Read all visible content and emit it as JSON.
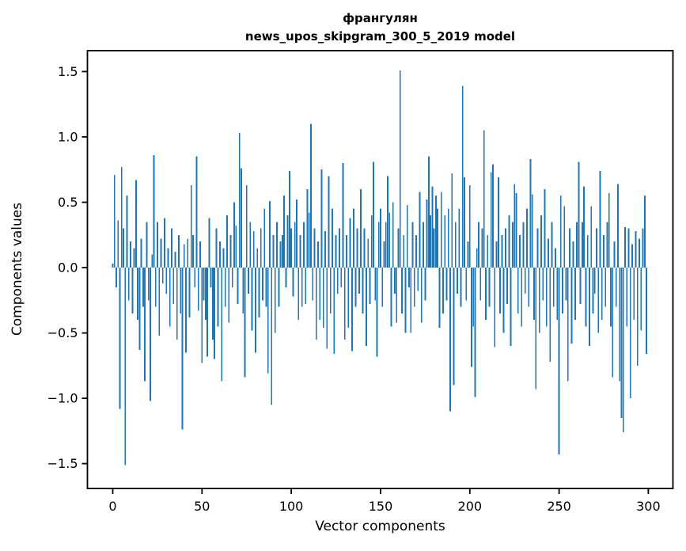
{
  "chart_data": {
    "type": "bar",
    "title": "франгулян",
    "subtitle": "news_upos_skipgram_300_5_2019 model",
    "xlabel": "Vector components",
    "ylabel": "Components values",
    "x_ticks": [
      0,
      50,
      100,
      150,
      200,
      250,
      300
    ],
    "y_ticks": [
      1.5,
      1.0,
      0.5,
      0.0,
      -0.5,
      -1.0,
      -1.5
    ],
    "xlim": [
      -14.2,
      313.8
    ],
    "ylim": [
      -1.69,
      1.66
    ],
    "grid": false,
    "legend": false,
    "bar_color": "#1f77b4",
    "axis_color": "#000000",
    "background": "#ffffff",
    "n_bars": 300,
    "bar_width": 0.8,
    "values": [
      0.03,
      0.71,
      -0.15,
      0.36,
      -1.08,
      0.77,
      0.3,
      -1.51,
      0.55,
      -0.25,
      0.2,
      -0.35,
      0.15,
      0.67,
      -0.4,
      -0.63,
      0.22,
      -0.3,
      -0.87,
      0.35,
      -0.25,
      -1.02,
      0.1,
      0.86,
      -0.3,
      0.35,
      -0.52,
      0.22,
      -0.12,
      0.38,
      -0.2,
      0.15,
      -0.45,
      0.3,
      -0.28,
      0.12,
      -0.55,
      0.25,
      -0.35,
      -1.24,
      0.18,
      -0.65,
      0.22,
      -0.38,
      0.63,
      0.25,
      -0.15,
      0.85,
      -0.33,
      0.2,
      -0.73,
      -0.25,
      -0.4,
      -0.68,
      0.38,
      -0.15,
      -0.55,
      -0.7,
      0.3,
      -0.45,
      0.2,
      -0.87,
      0.15,
      -0.3,
      0.4,
      -0.42,
      0.25,
      -0.15,
      0.5,
      0.32,
      -0.28,
      1.03,
      0.76,
      -0.35,
      -0.84,
      0.63,
      -0.2,
      0.35,
      -0.48,
      0.28,
      -0.65,
      0.15,
      -0.38,
      0.3,
      -0.25,
      0.45,
      -0.3,
      -0.81,
      0.51,
      -1.05,
      0.25,
      -0.5,
      0.35,
      -0.3,
      0.2,
      0.25,
      0.55,
      -0.15,
      0.4,
      0.74,
      0.3,
      -0.22,
      0.35,
      0.52,
      -0.4,
      0.25,
      -0.3,
      0.35,
      -0.28,
      0.6,
      0.42,
      1.1,
      -0.25,
      0.3,
      -0.55,
      0.2,
      -0.4,
      0.75,
      -0.46,
      0.28,
      -0.62,
      0.7,
      -0.35,
      0.45,
      -0.66,
      0.25,
      -0.2,
      0.3,
      -0.15,
      0.8,
      -0.55,
      0.25,
      -0.46,
      0.38,
      -0.64,
      0.45,
      -0.3,
      0.3,
      -0.2,
      0.6,
      -0.35,
      0.3,
      -0.6,
      0.22,
      -0.28,
      0.4,
      0.81,
      -0.25,
      -0.68,
      0.35,
      0.45,
      -0.3,
      0.2,
      0.35,
      0.7,
      0.42,
      -0.45,
      0.5,
      -0.2,
      -0.42,
      0.3,
      1.51,
      -0.35,
      0.25,
      -0.5,
      0.48,
      -0.15,
      -0.5,
      0.35,
      -0.3,
      0.25,
      -0.18,
      0.58,
      -0.42,
      0.35,
      -0.25,
      0.52,
      0.85,
      0.4,
      0.62,
      0.3,
      0.55,
      0.45,
      -0.46,
      0.58,
      -0.35,
      0.4,
      -0.25,
      0.45,
      -1.1,
      0.72,
      -0.9,
      0.35,
      -0.2,
      0.45,
      -0.3,
      1.39,
      0.69,
      -0.25,
      0.2,
      0.63,
      -0.76,
      -0.45,
      -0.99,
      0.15,
      0.35,
      -0.25,
      0.3,
      1.05,
      -0.4,
      0.25,
      -0.3,
      0.73,
      0.79,
      -0.61,
      0.2,
      0.69,
      -0.35,
      0.25,
      -0.5,
      0.3,
      -0.28,
      0.4,
      -0.6,
      0.35,
      0.64,
      0.57,
      -0.35,
      0.25,
      -0.45,
      0.35,
      -0.2,
      0.45,
      -0.3,
      0.83,
      0.56,
      -0.4,
      -0.93,
      0.3,
      -0.5,
      0.4,
      -0.25,
      0.6,
      -0.45,
      0.22,
      -0.72,
      0.35,
      -0.3,
      0.15,
      -0.4,
      -1.43,
      0.55,
      -0.35,
      0.47,
      -0.25,
      -0.87,
      0.3,
      -0.58,
      0.2,
      -0.4,
      0.35,
      0.81,
      -0.28,
      0.35,
      0.62,
      -0.45,
      0.25,
      -0.6,
      0.47,
      -0.35,
      -0.2,
      0.3,
      -0.5,
      0.74,
      -0.4,
      0.25,
      -0.3,
      0.35,
      0.57,
      -0.45,
      -0.84,
      0.2,
      -0.3,
      0.64,
      -0.87,
      -1.15,
      -1.26,
      0.31,
      -0.45,
      0.3,
      -1.0,
      0.18,
      -0.4,
      0.28,
      -0.75,
      0.22,
      -0.48,
      0.3,
      0.55,
      -0.66
    ]
  }
}
